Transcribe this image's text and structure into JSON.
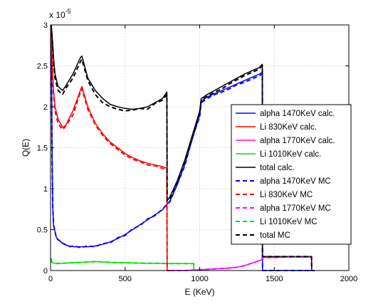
{
  "chart_data": {
    "type": "line",
    "title": "",
    "xlabel": "E (KeV)",
    "ylabel": "Q(E)",
    "y_exponent_label": "x 10",
    "y_exponent_power": "-5",
    "xlim": [
      0,
      2000
    ],
    "ylim": [
      0,
      3
    ],
    "y_scale_factor": 1e-05,
    "x_ticks": [
      "0",
      "500",
      "1000",
      "1500",
      "2000"
    ],
    "y_ticks": [
      "0",
      "0.5",
      "1",
      "1.5",
      "2",
      "2.5",
      "3"
    ],
    "x_tick_values": [
      0,
      500,
      1000,
      1500,
      2000
    ],
    "y_tick_values": [
      0,
      0.5,
      1,
      1.5,
      2,
      2.5,
      3
    ],
    "grid": true,
    "legend_position": "right",
    "series": [
      {
        "name": "alpha 1470KeV calc.",
        "color": "#0000ff",
        "style": "solid",
        "x": [
          5,
          10,
          15,
          20,
          40,
          80,
          120,
          160,
          200,
          250,
          300,
          350,
          400,
          450,
          500,
          550,
          600,
          650,
          700,
          750,
          800,
          850,
          900,
          950,
          1000,
          1010,
          1050,
          1100,
          1150,
          1200,
          1250,
          1300,
          1350,
          1400,
          1420,
          1421,
          1470,
          1700,
          1770
        ],
        "y": [
          3.0,
          1.5,
          0.8,
          0.55,
          0.4,
          0.33,
          0.3,
          0.29,
          0.29,
          0.29,
          0.3,
          0.32,
          0.35,
          0.39,
          0.44,
          0.5,
          0.56,
          0.62,
          0.68,
          0.74,
          0.85,
          1.05,
          1.3,
          1.6,
          1.9,
          2.07,
          2.12,
          2.16,
          2.2,
          2.24,
          2.28,
          2.32,
          2.36,
          2.4,
          2.42,
          0,
          0,
          0,
          0
        ]
      },
      {
        "name": "Li 830KeV calc.",
        "color": "#ff0000",
        "style": "solid",
        "x": [
          5,
          10,
          20,
          30,
          50,
          80,
          100,
          150,
          200,
          210,
          250,
          300,
          350,
          400,
          450,
          500,
          550,
          600,
          650,
          700,
          750,
          780,
          782,
          800
        ],
        "y": [
          3.0,
          2.6,
          2.2,
          2.0,
          1.85,
          1.75,
          1.77,
          1.95,
          2.2,
          2.25,
          2.0,
          1.8,
          1.67,
          1.57,
          1.5,
          1.43,
          1.38,
          1.34,
          1.31,
          1.29,
          1.27,
          1.25,
          0,
          0
        ]
      },
      {
        "name": "alpha 1770KeV calc.",
        "color": "#ff00ff",
        "style": "solid",
        "x": [
          800,
          850,
          900,
          950,
          1000,
          1050,
          1100,
          1150,
          1200,
          1250,
          1300,
          1350,
          1400,
          1420,
          1421,
          1450,
          1500,
          1600,
          1700,
          1750,
          1751
        ],
        "y": [
          0,
          0,
          0,
          0.005,
          0.01,
          0.015,
          0.02,
          0.025,
          0.03,
          0.04,
          0.06,
          0.09,
          0.12,
          0.14,
          0.16,
          0.16,
          0.16,
          0.165,
          0.165,
          0.165,
          0
        ]
      },
      {
        "name": "Li 1010KeV calc.",
        "color": "#00e000",
        "style": "solid",
        "x": [
          5,
          10,
          20,
          50,
          100,
          200,
          300,
          400,
          500,
          600,
          700,
          780,
          800,
          900,
          960,
          961
        ],
        "y": [
          0.15,
          0.1,
          0.09,
          0.085,
          0.09,
          0.1,
          0.11,
          0.1,
          0.095,
          0.09,
          0.088,
          0.086,
          0.085,
          0.085,
          0.085,
          0
        ]
      },
      {
        "name": "total calc.",
        "color": "#000000",
        "style": "solid",
        "x": [
          5,
          10,
          20,
          30,
          50,
          80,
          100,
          150,
          200,
          210,
          250,
          300,
          350,
          400,
          450,
          500,
          550,
          600,
          650,
          700,
          750,
          780,
          782,
          800,
          850,
          900,
          950,
          1000,
          1010,
          1050,
          1100,
          1150,
          1200,
          1250,
          1300,
          1350,
          1400,
          1420,
          1421,
          1500,
          1600,
          1700,
          1750,
          1751
        ],
        "y": [
          3.0,
          2.9,
          2.6,
          2.4,
          2.25,
          2.2,
          2.25,
          2.4,
          2.6,
          2.62,
          2.35,
          2.2,
          2.1,
          2.03,
          2.0,
          1.98,
          1.97,
          1.98,
          2.0,
          2.05,
          2.1,
          2.18,
          0.85,
          0.9,
          1.1,
          1.35,
          1.65,
          1.95,
          2.1,
          2.15,
          2.2,
          2.25,
          2.3,
          2.35,
          2.4,
          2.44,
          2.48,
          2.52,
          0.17,
          0.17,
          0.17,
          0.17,
          0.17,
          0
        ]
      },
      {
        "name": "alpha 1470KeV MC",
        "color": "#0000ff",
        "style": "dashed",
        "x": [
          5,
          10,
          15,
          20,
          40,
          80,
          120,
          160,
          200,
          250,
          300,
          350,
          400,
          450,
          500,
          550,
          600,
          650,
          700,
          750,
          800,
          850,
          900,
          950,
          1000,
          1010,
          1050,
          1100,
          1150,
          1200,
          1250,
          1300,
          1350,
          1400,
          1420,
          1421,
          1470,
          1700,
          1770
        ],
        "y": [
          2.9,
          1.4,
          0.78,
          0.56,
          0.39,
          0.34,
          0.29,
          0.3,
          0.28,
          0.3,
          0.29,
          0.33,
          0.34,
          0.4,
          0.43,
          0.51,
          0.55,
          0.63,
          0.67,
          0.75,
          0.84,
          1.06,
          1.28,
          1.62,
          1.88,
          2.05,
          2.1,
          2.15,
          2.18,
          2.22,
          2.27,
          2.3,
          2.34,
          2.38,
          2.4,
          0,
          0,
          0,
          0
        ]
      },
      {
        "name": "Li 830KeV MC",
        "color": "#ff0000",
        "style": "dashed",
        "x": [
          5,
          10,
          20,
          30,
          50,
          80,
          100,
          150,
          200,
          210,
          250,
          300,
          350,
          400,
          450,
          500,
          550,
          600,
          650,
          700,
          750,
          780,
          782,
          800
        ],
        "y": [
          2.9,
          2.5,
          2.15,
          1.95,
          1.8,
          1.72,
          1.76,
          1.9,
          2.18,
          2.22,
          1.97,
          1.78,
          1.65,
          1.55,
          1.48,
          1.41,
          1.36,
          1.33,
          1.29,
          1.28,
          1.25,
          1.23,
          0,
          0
        ]
      },
      {
        "name": "alpha 1770KeV MC",
        "color": "#ff00ff",
        "style": "dashed",
        "x": [
          800,
          850,
          900,
          950,
          1000,
          1050,
          1100,
          1150,
          1200,
          1250,
          1300,
          1350,
          1400,
          1420,
          1421,
          1450,
          1500,
          1600,
          1700,
          1750,
          1751
        ],
        "y": [
          0,
          0,
          0,
          0.005,
          0.01,
          0.015,
          0.02,
          0.025,
          0.03,
          0.04,
          0.06,
          0.09,
          0.12,
          0.14,
          0.16,
          0.16,
          0.16,
          0.165,
          0.165,
          0.165,
          0
        ]
      },
      {
        "name": "Li 1010KeV MC",
        "color": "#00e000",
        "style": "dashed",
        "x": [
          5,
          10,
          20,
          50,
          100,
          200,
          300,
          400,
          500,
          600,
          700,
          780,
          800,
          900,
          960,
          961
        ],
        "y": [
          0.14,
          0.1,
          0.09,
          0.085,
          0.09,
          0.1,
          0.11,
          0.1,
          0.095,
          0.09,
          0.088,
          0.086,
          0.085,
          0.085,
          0.085,
          0
        ]
      },
      {
        "name": "total MC",
        "color": "#000000",
        "style": "dashed",
        "x": [
          5,
          10,
          20,
          30,
          50,
          80,
          100,
          150,
          200,
          210,
          250,
          300,
          350,
          400,
          450,
          500,
          550,
          600,
          650,
          700,
          750,
          780,
          782,
          800,
          850,
          900,
          950,
          1000,
          1010,
          1050,
          1100,
          1150,
          1200,
          1250,
          1300,
          1350,
          1400,
          1420,
          1421,
          1500,
          1600,
          1700,
          1750,
          1751
        ],
        "y": [
          2.9,
          2.85,
          2.55,
          2.35,
          2.2,
          2.15,
          2.22,
          2.35,
          2.55,
          2.58,
          2.32,
          2.15,
          2.05,
          2.0,
          1.97,
          1.95,
          1.96,
          1.98,
          1.97,
          2.04,
          2.08,
          2.15,
          0.85,
          0.88,
          1.08,
          1.33,
          1.63,
          1.92,
          2.08,
          2.13,
          2.18,
          2.22,
          2.28,
          2.33,
          2.38,
          2.42,
          2.46,
          2.5,
          0.17,
          0.17,
          0.17,
          0.17,
          0.17,
          0
        ]
      }
    ]
  }
}
